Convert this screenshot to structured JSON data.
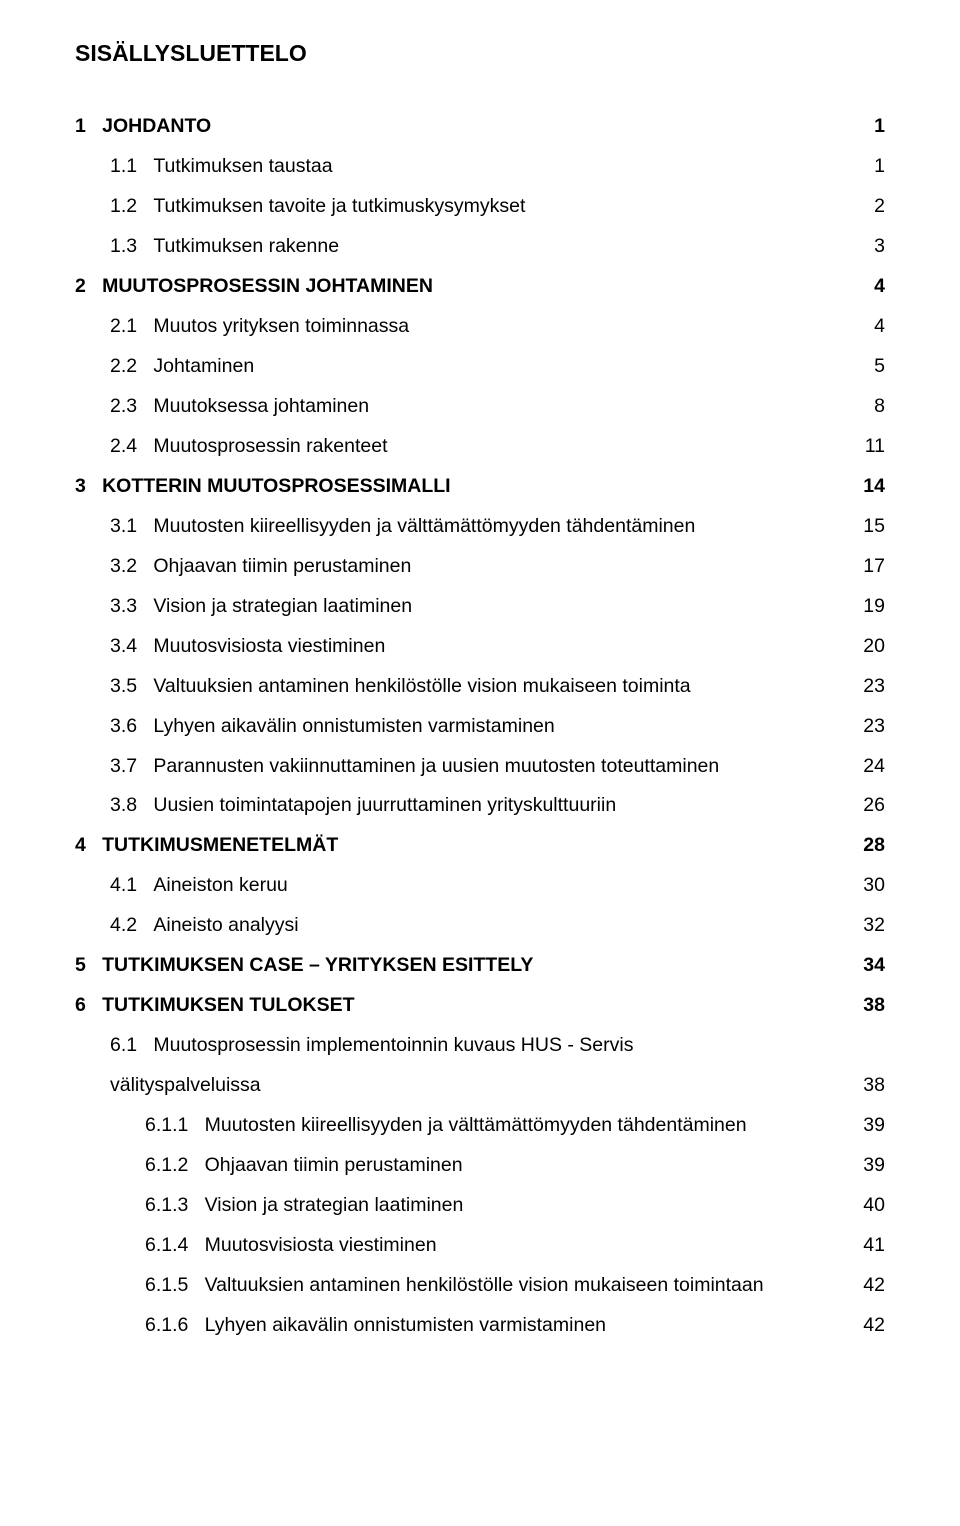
{
  "title": "SISÄLLYSLUETTELO",
  "entries": [
    {
      "num": "1",
      "text": "JOHDANTO",
      "page": "1",
      "level": 0,
      "bold": true
    },
    {
      "num": "1.1",
      "text": "Tutkimuksen taustaa",
      "page": "1",
      "level": 1,
      "bold": false
    },
    {
      "num": "1.2",
      "text": "Tutkimuksen tavoite ja tutkimuskysymykset",
      "page": "2",
      "level": 1,
      "bold": false
    },
    {
      "num": "1.3",
      "text": "Tutkimuksen rakenne",
      "page": "3",
      "level": 1,
      "bold": false
    },
    {
      "num": "2",
      "text": "MUUTOSPROSESSIN JOHTAMINEN",
      "page": "4",
      "level": 0,
      "bold": true
    },
    {
      "num": "2.1",
      "text": "Muutos yrityksen toiminnassa",
      "page": "4",
      "level": 1,
      "bold": false
    },
    {
      "num": "2.2",
      "text": "Johtaminen",
      "page": "5",
      "level": 1,
      "bold": false
    },
    {
      "num": "2.3",
      "text": "Muutoksessa johtaminen",
      "page": "8",
      "level": 1,
      "bold": false
    },
    {
      "num": "2.4",
      "text": "Muutosprosessin rakenteet",
      "page": "11",
      "level": 1,
      "bold": false
    },
    {
      "num": "3",
      "text": "KOTTERIN MUUTOSPROSESSIMALLI",
      "page": "14",
      "level": 0,
      "bold": true
    },
    {
      "num": "3.1",
      "text": "Muutosten kiireellisyyden ja välttämättömyyden tähdentäminen",
      "page": "15",
      "level": 1,
      "bold": false
    },
    {
      "num": "3.2",
      "text": "Ohjaavan tiimin perustaminen",
      "page": "17",
      "level": 1,
      "bold": false
    },
    {
      "num": "3.3",
      "text": "Vision ja strategian laatiminen",
      "page": "19",
      "level": 1,
      "bold": false
    },
    {
      "num": "3.4",
      "text": "Muutosvisiosta viestiminen",
      "page": "20",
      "level": 1,
      "bold": false
    },
    {
      "num": "3.5",
      "text": "Valtuuksien antaminen henkilöstölle vision mukaiseen toiminta",
      "page": "23",
      "level": 1,
      "bold": false
    },
    {
      "num": "3.6",
      "text": "Lyhyen aikavälin onnistumisten varmistaminen",
      "page": "23",
      "level": 1,
      "bold": false
    },
    {
      "num": "3.7",
      "text": "Parannusten vakiinnuttaminen ja uusien muutosten toteuttaminen",
      "page": "24",
      "level": 1,
      "bold": false
    },
    {
      "num": "3.8",
      "text": "Uusien toimintatapojen juurruttaminen yrityskulttuuriin",
      "page": "26",
      "level": 1,
      "bold": false
    },
    {
      "num": "4",
      "text": "TUTKIMUSMENETELMÄT",
      "page": "28",
      "level": 0,
      "bold": true
    },
    {
      "num": "4.1",
      "text": "Aineiston keruu",
      "page": "30",
      "level": 1,
      "bold": false
    },
    {
      "num": "4.2",
      "text": "Aineisto analyysi",
      "page": "32",
      "level": 1,
      "bold": false
    },
    {
      "num": "5",
      "text": "TUTKIMUKSEN CASE – YRITYKSEN ESITTELY",
      "page": "34",
      "level": 0,
      "bold": true
    },
    {
      "num": "6",
      "text": "TUTKIMUKSEN TULOKSET",
      "page": "38",
      "level": 0,
      "bold": true
    },
    {
      "num": "6.1",
      "text": "Muutosprosessin implementoinnin kuvaus HUS - Servis",
      "page": "",
      "level": 1,
      "bold": false,
      "nodots": true
    },
    {
      "num": "",
      "text": "välityspalveluissa",
      "page": "38",
      "level": 1,
      "bold": false
    },
    {
      "num": "6.1.1",
      "text": "Muutosten kiireellisyyden ja välttämättömyyden tähdentäminen",
      "page": "39",
      "level": 2,
      "bold": false
    },
    {
      "num": "6.1.2",
      "text": "Ohjaavan tiimin perustaminen",
      "page": "39",
      "level": 2,
      "bold": false
    },
    {
      "num": "6.1.3",
      "text": "Vision ja strategian laatiminen",
      "page": "40",
      "level": 2,
      "bold": false
    },
    {
      "num": "6.1.4",
      "text": "Muutosvisiosta viestiminen",
      "page": "41",
      "level": 2,
      "bold": false
    },
    {
      "num": "6.1.5",
      "text": "Valtuuksien antaminen henkilöstölle vision mukaiseen toimintaan",
      "page": "42",
      "level": 2,
      "bold": false,
      "tight": true
    },
    {
      "num": "6.1.6",
      "text": "Lyhyen aikavälin onnistumisten varmistaminen",
      "page": "42",
      "level": 2,
      "bold": false
    }
  ]
}
